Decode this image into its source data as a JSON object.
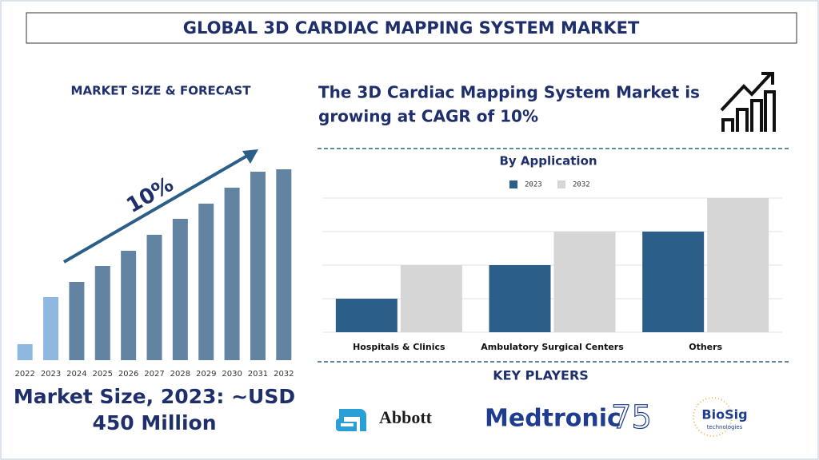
{
  "header": {
    "title": "GLOBAL 3D CARDIAC MAPPING SYSTEM MARKET"
  },
  "left_panel": {
    "heading": "MARKET SIZE & FORECAST",
    "market_size": [
      "Market Size, 2023: ~USD",
      "450 Million"
    ]
  },
  "right_panel": {
    "cagr_text": [
      "The 3D Cardiac Mapping System Market is",
      "growing at CAGR of 10%"
    ],
    "key_players_heading": "KEY PLAYERS",
    "players": [
      {
        "name": "Abbott"
      },
      {
        "name": "Medtronic",
        "badge": "75"
      },
      {
        "name": "BioSig",
        "sub": "technologies"
      }
    ]
  },
  "chart_data": [
    {
      "type": "bar",
      "annotation": "10%",
      "categories": [
        "2022",
        "2023",
        "2024",
        "2025",
        "2026",
        "2027",
        "2028",
        "2029",
        "2030",
        "2031",
        "2032"
      ],
      "values": [
        20,
        79,
        98,
        118,
        137,
        157,
        177,
        196,
        216,
        236,
        239
      ],
      "colors": [
        "#8fb8e0",
        "#8fb8e0",
        "#6383a3",
        "#6383a3",
        "#6383a3",
        "#6383a3",
        "#6383a3",
        "#6383a3",
        "#6383a3",
        "#6383a3",
        "#6383a3"
      ],
      "ylim": [
        0,
        240
      ]
    },
    {
      "type": "bar",
      "title": "By Application",
      "categories": [
        "Hospitals & Clinics",
        "Ambulatory Surgical Centers",
        "Others"
      ],
      "series": [
        {
          "name": "2023",
          "color": "#2b5f8a",
          "values": [
            1,
            2,
            3
          ]
        },
        {
          "name": "2032",
          "color": "#d6d6d6",
          "values": [
            2,
            3,
            4
          ]
        }
      ],
      "ylim": [
        0,
        4
      ],
      "yticks": [
        0,
        1,
        2,
        3,
        4
      ],
      "grid": true,
      "tick_labels": false,
      "legend": "top"
    }
  ]
}
